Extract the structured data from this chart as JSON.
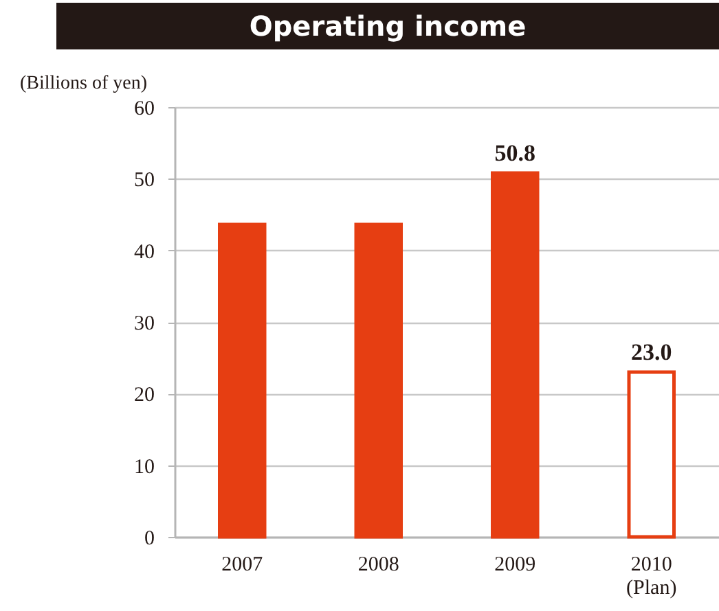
{
  "chart_data": {
    "type": "bar",
    "title": "Operating income",
    "ylabel": "(Billions of yen)",
    "categories": [
      "2007",
      "2008",
      "2009",
      "2010\n(Plan)"
    ],
    "values": [
      43.6,
      43.6,
      50.8,
      23.0
    ],
    "colors": [
      "#e63e12",
      "#e63e12",
      "#e63e12",
      "#ffffff"
    ],
    "value_labels": [
      null,
      null,
      "50.8",
      "23.0"
    ],
    "ylim": [
      0,
      60
    ],
    "yticks": [
      0,
      10,
      20,
      30,
      40,
      50,
      60
    ],
    "grid": "y"
  }
}
